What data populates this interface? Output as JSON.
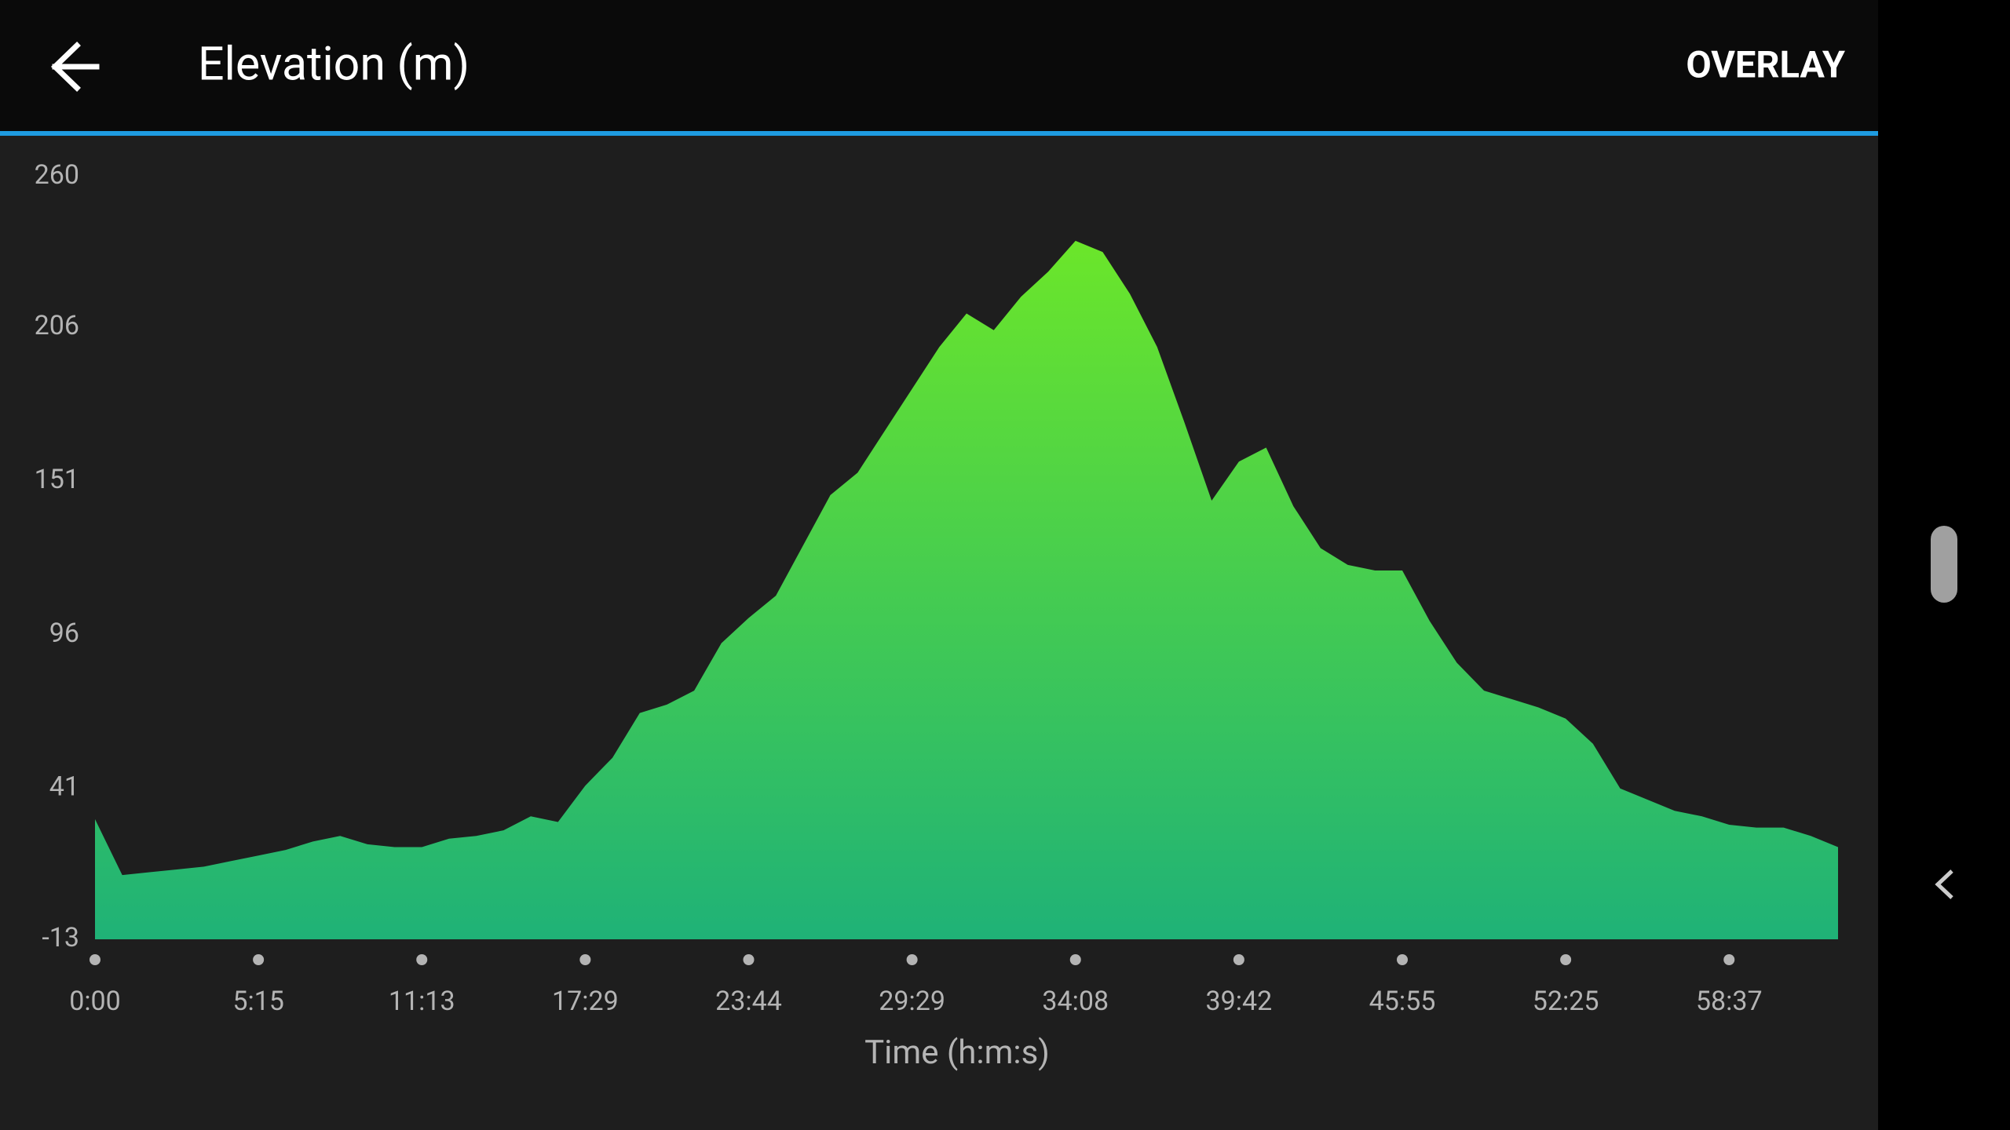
{
  "header": {
    "title": "Elevation (m)",
    "action": "OVERLAY"
  },
  "chart_data": {
    "type": "area",
    "x_label": "Time (h:m:s)",
    "categories": [
      "0:00",
      null,
      null,
      null,
      null,
      null,
      "5:15",
      null,
      null,
      null,
      null,
      null,
      "11:13",
      null,
      null,
      null,
      null,
      null,
      "17:29",
      null,
      null,
      null,
      null,
      null,
      "23:44",
      null,
      null,
      null,
      null,
      null,
      "29:29",
      null,
      null,
      null,
      null,
      null,
      "34:08",
      null,
      null,
      null,
      null,
      null,
      "39:42",
      null,
      null,
      null,
      null,
      null,
      "45:55",
      null,
      null,
      null,
      null,
      null,
      "52:25",
      null,
      null,
      null,
      null,
      null,
      "58:37",
      null,
      null,
      null,
      null
    ],
    "values": [
      30,
      10,
      11,
      12,
      13,
      15,
      17,
      19,
      22,
      24,
      21,
      20,
      20,
      23,
      24,
      26,
      31,
      29,
      42,
      52,
      68,
      71,
      76,
      93,
      102,
      110,
      128,
      146,
      154,
      169,
      184,
      199,
      211,
      205,
      217,
      226,
      237,
      233,
      218,
      199,
      172,
      144,
      158,
      163,
      142,
      127,
      121,
      119,
      119,
      101,
      86,
      76,
      73,
      70,
      66,
      57,
      41,
      37,
      33,
      31,
      28,
      27,
      27,
      24,
      20
    ],
    "ylim": [
      -13,
      260
    ],
    "yticks": [
      -13,
      41,
      96,
      151,
      206,
      260
    ],
    "color_top": "#6be62a",
    "color_bottom": "#1fb277"
  }
}
